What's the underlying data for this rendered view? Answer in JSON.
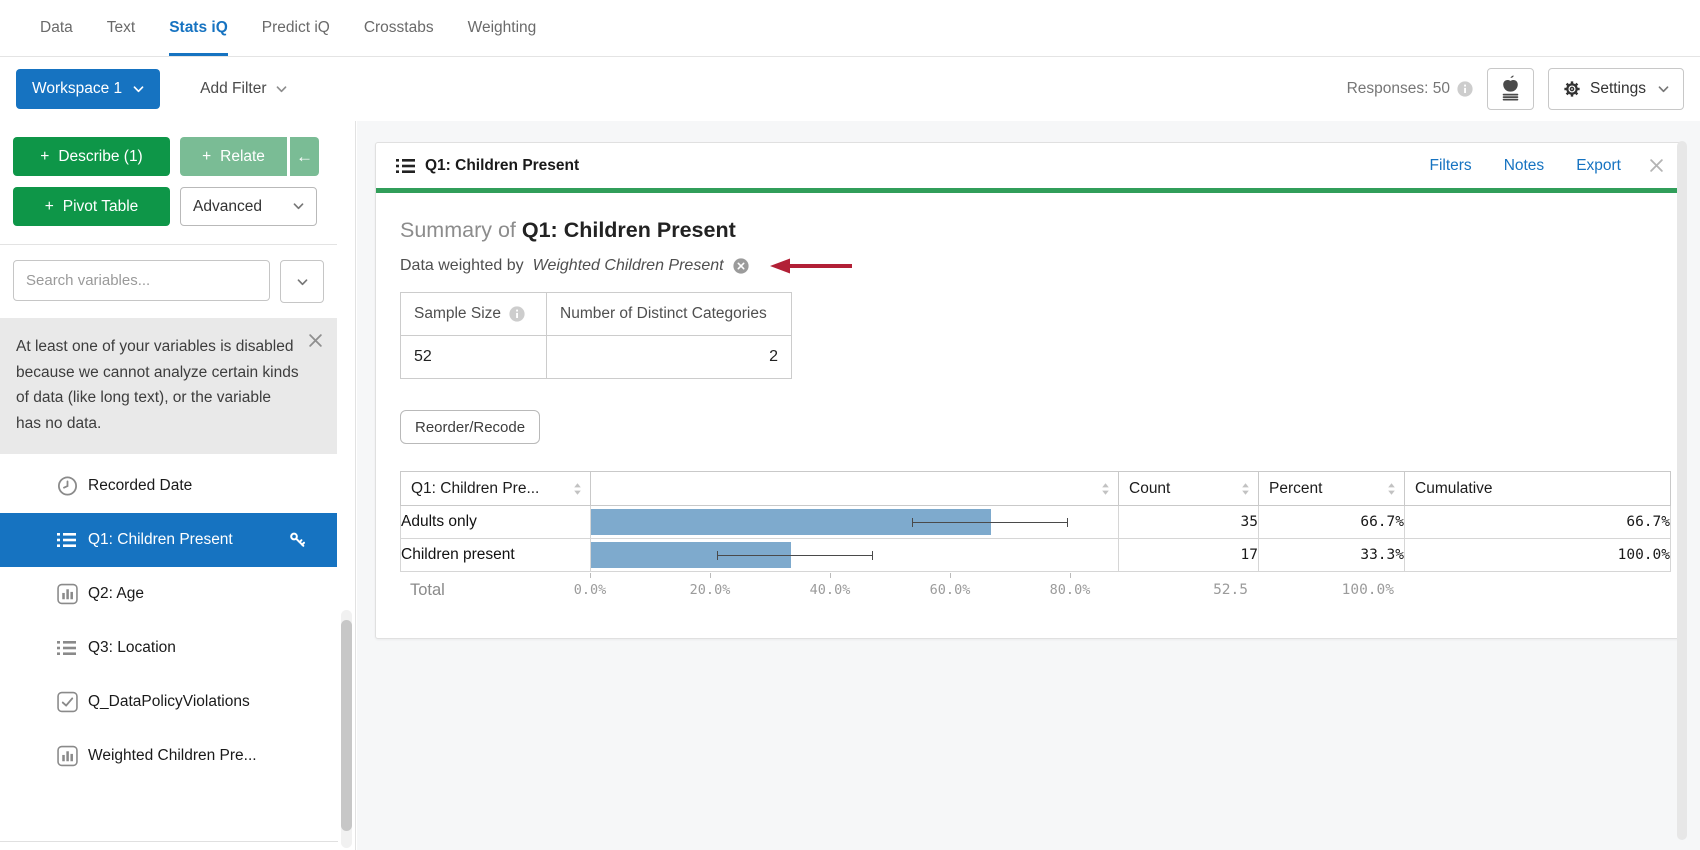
{
  "nav": {
    "tabs": [
      {
        "label": "Data",
        "active": false
      },
      {
        "label": "Text",
        "active": false
      },
      {
        "label": "Stats iQ",
        "active": true
      },
      {
        "label": "Predict iQ",
        "active": false
      },
      {
        "label": "Crosstabs",
        "active": false
      },
      {
        "label": "Weighting",
        "active": false
      }
    ]
  },
  "toolbar": {
    "workspace_label": "Workspace 1",
    "add_filter_label": "Add Filter",
    "responses_label": "Responses: 50",
    "settings_label": "Settings"
  },
  "sidebar": {
    "plus_glyph": "+",
    "describe_label": "Describe (1)",
    "relate_label": "Relate",
    "back_arrow": "←",
    "pivot_label": "Pivot Table",
    "advanced_label": "Advanced",
    "search_placeholder": "Search variables...",
    "notice_text": "At least one of your variables is disabled because we cannot analyze certain kinds of data (like long text), or the variable has no data.",
    "variables": [
      {
        "label": "Recorded Date",
        "icon": "clock",
        "selected": false,
        "key": false
      },
      {
        "label": "Q1: Children Present",
        "icon": "list",
        "selected": true,
        "key": true
      },
      {
        "label": "Q2: Age",
        "icon": "barchart",
        "selected": false,
        "key": false
      },
      {
        "label": "Q3: Location",
        "icon": "list",
        "selected": false,
        "key": false
      },
      {
        "label": "Q_DataPolicyViolations",
        "icon": "checkbox",
        "selected": false,
        "key": false
      },
      {
        "label": "Weighted Children Pre...",
        "icon": "barchart",
        "selected": false,
        "key": false
      }
    ]
  },
  "card": {
    "header_title": "Q1: Children Present",
    "actions": [
      "Filters",
      "Notes",
      "Export"
    ],
    "summary_prefix": "Summary of ",
    "summary_title": "Q1: Children Present",
    "weighted_prefix": "Data weighted by",
    "weighted_var": "Weighted Children Present",
    "stats_table": {
      "headers": [
        "Sample Size",
        "Number of Distinct Categories"
      ],
      "values": [
        "52",
        "2"
      ]
    },
    "reorder_button": "Reorder/Recode"
  },
  "chart_data": {
    "type": "bar",
    "title": "Summary of Q1: Children Present",
    "first_column_header": "Q1: Children Pre...",
    "columns": [
      "Count",
      "Percent",
      "Cumulative"
    ],
    "categories": [
      "Adults only",
      "Children present"
    ],
    "series": [
      {
        "name": "Percent",
        "values": [
          66.7,
          33.3
        ]
      }
    ],
    "rows": [
      {
        "label": "Adults only",
        "percent_value": 66.7,
        "ci": [
          53.5,
          79.5
        ],
        "count": "35",
        "percent": "66.7%",
        "cumulative": "66.7%"
      },
      {
        "label": "Children present",
        "percent_value": 33.3,
        "ci": [
          21.0,
          47.0
        ],
        "count": "17",
        "percent": "33.3%",
        "cumulative": "100.0%"
      }
    ],
    "total_row": {
      "label": "Total",
      "count": "52.5",
      "percent": "100.0%"
    },
    "axis_ticks": [
      {
        "label": "0.0%",
        "value": 0
      },
      {
        "label": "20.0%",
        "value": 20
      },
      {
        "label": "40.0%",
        "value": 40
      },
      {
        "label": "60.0%",
        "value": 60
      },
      {
        "label": "80.0%",
        "value": 80
      }
    ],
    "xlim": [
      0,
      88
    ],
    "grid": false,
    "legend": false
  },
  "colors": {
    "accent_blue": "#1673c1",
    "button_green": "#0e9648",
    "button_green_light": "#7abc95",
    "card_green_bar": "#319e5a",
    "bar_blue": "#7eaacd",
    "arrow_red": "#b22036"
  }
}
